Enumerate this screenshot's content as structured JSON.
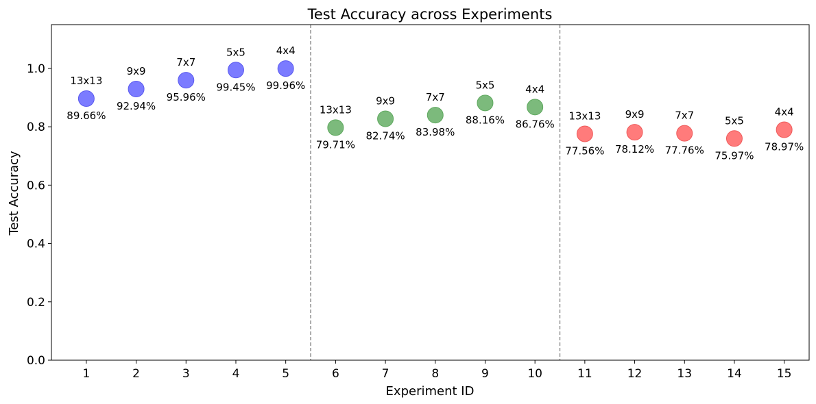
{
  "chart_data": {
    "type": "scatter",
    "title": "Test Accuracy across Experiments",
    "xlabel": "Experiment ID",
    "ylabel": "Test Accuracy",
    "xlim": [
      0.3,
      15.5
    ],
    "ylim": [
      0,
      1.15
    ],
    "x_ticks": [
      1,
      2,
      3,
      4,
      5,
      6,
      7,
      8,
      9,
      10,
      11,
      12,
      13,
      14,
      15
    ],
    "y_ticks": [
      0.0,
      0.2,
      0.4,
      0.6,
      0.8,
      1.0
    ],
    "separators_x": [
      5.5,
      10.5
    ],
    "grid": false,
    "points": [
      {
        "x": 1,
        "y": 0.8966,
        "kernel": "13x13",
        "label": "89.66%",
        "color": "#7b7bff",
        "edge": "#5a5aee"
      },
      {
        "x": 2,
        "y": 0.9294,
        "kernel": "9x9",
        "label": "92.94%",
        "color": "#7b7bff",
        "edge": "#5a5aee"
      },
      {
        "x": 3,
        "y": 0.9596,
        "kernel": "7x7",
        "label": "95.96%",
        "color": "#7b7bff",
        "edge": "#5a5aee"
      },
      {
        "x": 4,
        "y": 0.9945,
        "kernel": "5x5",
        "label": "99.45%",
        "color": "#7b7bff",
        "edge": "#5a5aee"
      },
      {
        "x": 5,
        "y": 0.9996,
        "kernel": "4x4",
        "label": "99.96%",
        "color": "#7b7bff",
        "edge": "#5a5aee"
      },
      {
        "x": 6,
        "y": 0.7971,
        "kernel": "13x13",
        "label": "79.71%",
        "color": "#7cba7c",
        "edge": "#5ea85e"
      },
      {
        "x": 7,
        "y": 0.8274,
        "kernel": "9x9",
        "label": "82.74%",
        "color": "#7cba7c",
        "edge": "#5ea85e"
      },
      {
        "x": 8,
        "y": 0.8398,
        "kernel": "7x7",
        "label": "83.98%",
        "color": "#7cba7c",
        "edge": "#5ea85e"
      },
      {
        "x": 9,
        "y": 0.8816,
        "kernel": "5x5",
        "label": "88.16%",
        "color": "#7cba7c",
        "edge": "#5ea85e"
      },
      {
        "x": 10,
        "y": 0.8676,
        "kernel": "4x4",
        "label": "86.76%",
        "color": "#7cba7c",
        "edge": "#5ea85e"
      },
      {
        "x": 11,
        "y": 0.7756,
        "kernel": "13x13",
        "label": "77.56%",
        "color": "#ff7b7b",
        "edge": "#ee5a5a"
      },
      {
        "x": 12,
        "y": 0.7812,
        "kernel": "9x9",
        "label": "78.12%",
        "color": "#ff7b7b",
        "edge": "#ee5a5a"
      },
      {
        "x": 13,
        "y": 0.7776,
        "kernel": "7x7",
        "label": "77.76%",
        "color": "#ff7b7b",
        "edge": "#ee5a5a"
      },
      {
        "x": 14,
        "y": 0.7597,
        "kernel": "5x5",
        "label": "75.97%",
        "color": "#ff7b7b",
        "edge": "#ee5a5a"
      },
      {
        "x": 15,
        "y": 0.7897,
        "kernel": "4x4",
        "label": "78.97%",
        "color": "#ff7b7b",
        "edge": "#ee5a5a"
      }
    ]
  }
}
